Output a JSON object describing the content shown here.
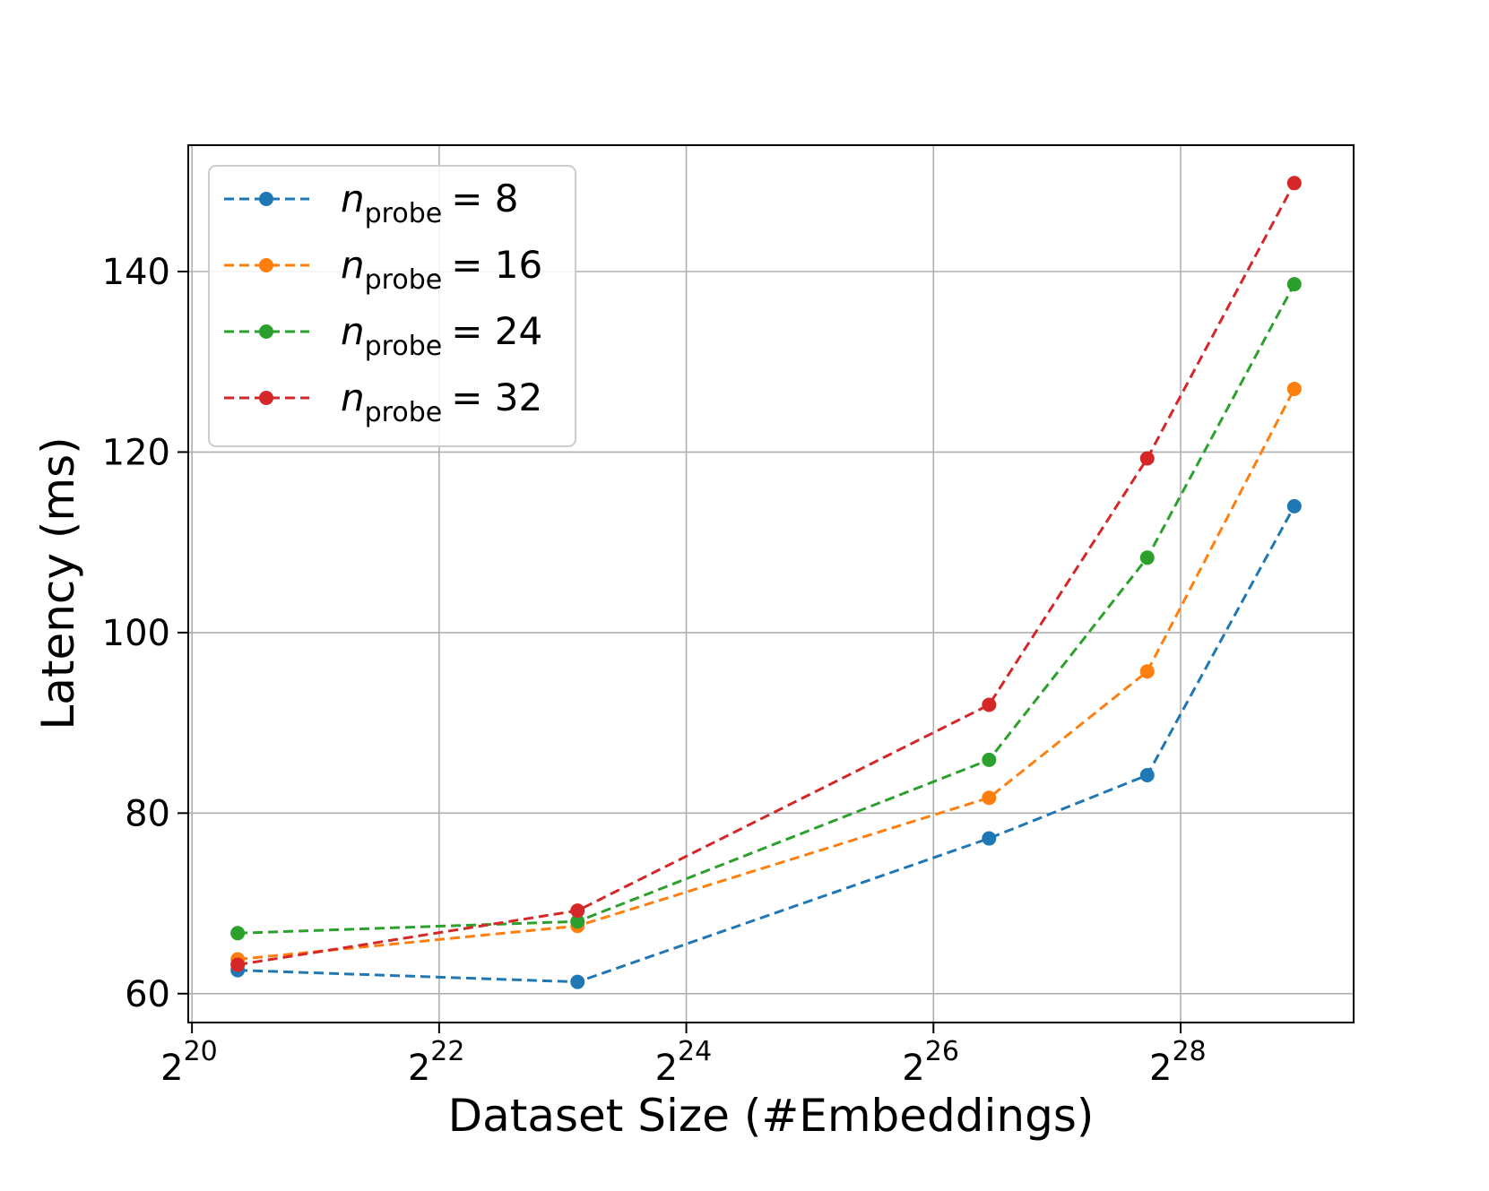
{
  "chart_data": {
    "type": "line",
    "title": "",
    "xlabel": "Dataset Size (#Embeddings)",
    "ylabel": "Latency (ms)",
    "x_scale": "log2",
    "x_exponent_range": [
      19.97,
      29.4
    ],
    "ylim": [
      56.8,
      154.0
    ],
    "grid": true,
    "legend_position": "top-left",
    "x_ticks": [
      {
        "base": "2",
        "exp": "20",
        "value_exp": 20
      },
      {
        "base": "2",
        "exp": "22",
        "value_exp": 22
      },
      {
        "base": "2",
        "exp": "24",
        "value_exp": 24
      },
      {
        "base": "2",
        "exp": "26",
        "value_exp": 26
      },
      {
        "base": "2",
        "exp": "28",
        "value_exp": 28
      }
    ],
    "y_ticks": [
      {
        "label": "60",
        "value": 60
      },
      {
        "label": "80",
        "value": 80
      },
      {
        "label": "100",
        "value": 100
      },
      {
        "label": "120",
        "value": 120
      },
      {
        "label": "140",
        "value": 140
      }
    ],
    "x_exponents": [
      20.37,
      23.12,
      26.45,
      27.73,
      28.92
    ],
    "series": [
      {
        "name": "n_probe = 8",
        "var": "n",
        "sub": "probe",
        "value_text": "= 8",
        "color": "#1f77b4",
        "values": [
          62.6,
          61.3,
          77.2,
          84.2,
          114.0
        ]
      },
      {
        "name": "n_probe = 16",
        "var": "n",
        "sub": "probe",
        "value_text": "= 16",
        "color": "#ff7f0e",
        "values": [
          63.8,
          67.5,
          81.7,
          95.7,
          127.0
        ]
      },
      {
        "name": "n_probe = 24",
        "var": "n",
        "sub": "probe",
        "value_text": "= 24",
        "color": "#2ca02c",
        "values": [
          66.7,
          68.0,
          85.9,
          108.3,
          138.6
        ]
      },
      {
        "name": "n_probe = 32",
        "var": "n",
        "sub": "probe",
        "value_text": "= 32",
        "color": "#d62728",
        "values": [
          63.2,
          69.2,
          92.0,
          119.3,
          149.8
        ]
      }
    ]
  }
}
